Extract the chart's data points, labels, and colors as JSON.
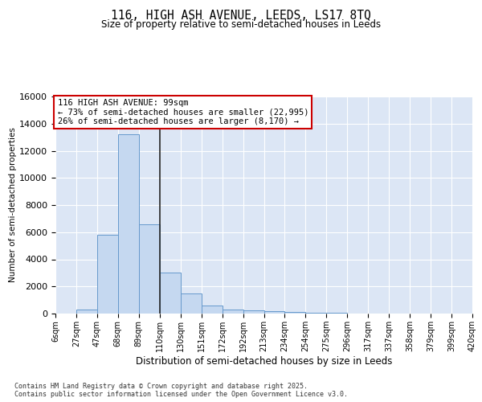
{
  "title": "116, HIGH ASH AVENUE, LEEDS, LS17 8TQ",
  "subtitle": "Size of property relative to semi-detached houses in Leeds",
  "xlabel": "Distribution of semi-detached houses by size in Leeds",
  "ylabel": "Number of semi-detached properties",
  "fig_bg_color": "#ffffff",
  "plot_bg_color": "#dce6f5",
  "bar_face_color": "#c5d8f0",
  "bar_edge_color": "#6699cc",
  "grid_color": "#ffffff",
  "vline_color": "#222222",
  "annotation_text": "116 HIGH ASH AVENUE: 99sqm\n← 73% of semi-detached houses are smaller (22,995)\n26% of semi-detached houses are larger (8,170) →",
  "annotation_box_edge_color": "#cc0000",
  "footer_text": "Contains HM Land Registry data © Crown copyright and database right 2025.\nContains public sector information licensed under the Open Government Licence v3.0.",
  "bins": [
    "6sqm",
    "27sqm",
    "47sqm",
    "68sqm",
    "89sqm",
    "110sqm",
    "130sqm",
    "151sqm",
    "172sqm",
    "192sqm",
    "213sqm",
    "234sqm",
    "254sqm",
    "275sqm",
    "296sqm",
    "317sqm",
    "337sqm",
    "358sqm",
    "379sqm",
    "399sqm",
    "420sqm"
  ],
  "values": [
    0,
    300,
    5800,
    13200,
    6600,
    3050,
    1500,
    600,
    300,
    250,
    150,
    100,
    80,
    50,
    20,
    10,
    5,
    2,
    1,
    0
  ],
  "ylim": [
    0,
    16000
  ],
  "yticks": [
    0,
    2000,
    4000,
    6000,
    8000,
    10000,
    12000,
    14000,
    16000
  ],
  "vline_bin_index": 5
}
